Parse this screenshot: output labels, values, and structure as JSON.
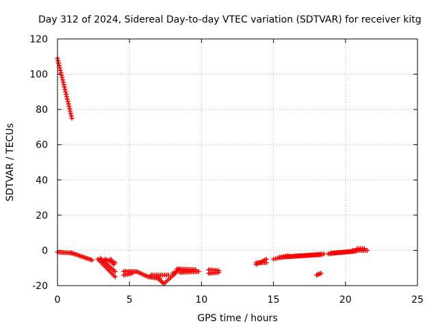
{
  "chart_data": {
    "type": "scatter",
    "title": "Day 312 of 2024, Sidereal Day-to-day VTEC variation (SDTVAR) for receiver kitg",
    "xlabel": "GPS time / hours",
    "ylabel": "SDTVAR / TECUs",
    "xlim": [
      0,
      25
    ],
    "ylim": [
      -20,
      120
    ],
    "xticks": [
      "0",
      "5",
      "10",
      "15",
      "20",
      "25"
    ],
    "yticks": [
      "-20",
      "0",
      "20",
      "40",
      "60",
      "80",
      "100",
      "120"
    ],
    "grid": true,
    "marker": "plus",
    "color": "#ff0000",
    "series": [
      {
        "segments": [
          {
            "x0": 0.0,
            "y0": 109,
            "x1": 1.0,
            "y1": 75,
            "n": 26
          },
          {
            "x0": 0.0,
            "y0": -1,
            "x1": 1.0,
            "y1": -1.5,
            "n": 10
          },
          {
            "x0": 1.0,
            "y0": -1.5,
            "x1": 2.4,
            "y1": -5.5,
            "n": 14
          },
          {
            "x0": 2.8,
            "y0": -5,
            "x1": 4.0,
            "y1": -15,
            "n": 12
          },
          {
            "x0": 3.0,
            "y0": -4.5,
            "x1": 4.0,
            "y1": -12,
            "n": 10
          },
          {
            "x0": 3.3,
            "y0": -5,
            "x1": 4.0,
            "y1": -7,
            "n": 7
          },
          {
            "x0": 3.7,
            "y0": -5,
            "x1": 3.9,
            "y1": -8,
            "n": 4
          },
          {
            "x0": 4.6,
            "y0": -12,
            "x1": 5.5,
            "y1": -12,
            "n": 9
          },
          {
            "x0": 4.6,
            "y0": -14,
            "x1": 5.2,
            "y1": -13,
            "n": 6
          },
          {
            "x0": 5.5,
            "y0": -12,
            "x1": 6.3,
            "y1": -15,
            "n": 8
          },
          {
            "x0": 6.3,
            "y0": -15,
            "x1": 7.1,
            "y1": -16,
            "n": 8
          },
          {
            "x0": 6.5,
            "y0": -14,
            "x1": 7.7,
            "y1": -14,
            "n": 10
          },
          {
            "x0": 7.0,
            "y0": -16,
            "x1": 7.4,
            "y1": -19,
            "n": 5
          },
          {
            "x0": 7.5,
            "y0": -18,
            "x1": 8.2,
            "y1": -13,
            "n": 7
          },
          {
            "x0": 8.0,
            "y0": -13,
            "x1": 8.5,
            "y1": -11,
            "n": 5
          },
          {
            "x0": 8.3,
            "y0": -10.5,
            "x1": 9.6,
            "y1": -11,
            "n": 12
          },
          {
            "x0": 8.5,
            "y0": -12.5,
            "x1": 9.8,
            "y1": -12,
            "n": 12
          },
          {
            "x0": 10.5,
            "y0": -11,
            "x1": 11.2,
            "y1": -11.5,
            "n": 7
          },
          {
            "x0": 10.5,
            "y0": -13,
            "x1": 11.2,
            "y1": -12.5,
            "n": 7
          },
          {
            "x0": 13.8,
            "y0": -8,
            "x1": 14.5,
            "y1": -5,
            "n": 7
          },
          {
            "x0": 13.8,
            "y0": -7,
            "x1": 14.5,
            "y1": -7,
            "n": 6
          },
          {
            "x0": 15.0,
            "y0": -5,
            "x1": 16.0,
            "y1": -3,
            "n": 8
          },
          {
            "x0": 15.4,
            "y0": -4,
            "x1": 18.5,
            "y1": -2,
            "n": 24
          },
          {
            "x0": 16.0,
            "y0": -3.5,
            "x1": 18.3,
            "y1": -2.5,
            "n": 18
          },
          {
            "x0": 18.0,
            "y0": -14,
            "x1": 18.3,
            "y1": -13,
            "n": 4
          },
          {
            "x0": 18.8,
            "y0": -2,
            "x1": 20.5,
            "y1": -0.5,
            "n": 14
          },
          {
            "x0": 19.0,
            "y0": -1.5,
            "x1": 20.7,
            "y1": -0.5,
            "n": 14
          },
          {
            "x0": 20.5,
            "y0": 0,
            "x1": 21.5,
            "y1": 0,
            "n": 9
          },
          {
            "x0": 20.8,
            "y0": 1,
            "x1": 21.3,
            "y1": 1,
            "n": 5
          }
        ]
      }
    ]
  }
}
